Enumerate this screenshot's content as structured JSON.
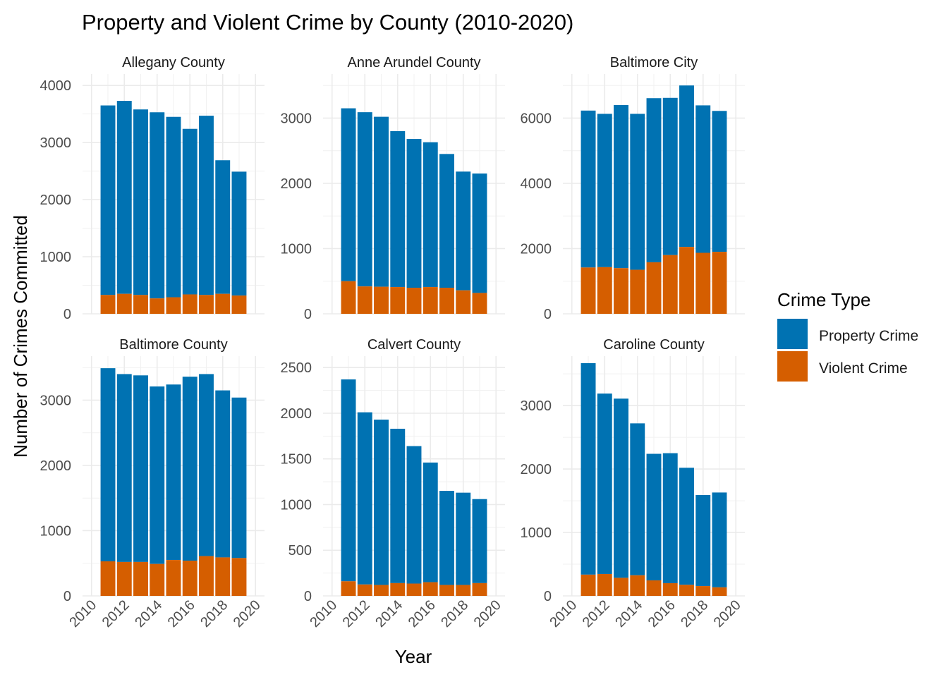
{
  "chart_data": {
    "type": "bar",
    "stacked": true,
    "title": "Property and Violent Crime by County (2010-2020)",
    "xlabel": "Year",
    "ylabel": "Number of Crimes Committed",
    "legend": {
      "title": "Crime Type",
      "position": "right",
      "entries": [
        {
          "label": "Property Crime",
          "color": "#0072B2"
        },
        {
          "label": "Violent Crime",
          "color": "#D55E00"
        }
      ]
    },
    "grid": true,
    "x_ticks": [
      2010,
      2012,
      2014,
      2016,
      2018,
      2020
    ],
    "x_range": [
      2010,
      2020
    ],
    "years": [
      2011,
      2012,
      2013,
      2014,
      2015,
      2016,
      2017,
      2018,
      2019
    ],
    "facets": [
      {
        "name": "Allegany County",
        "y_ticks": [
          0,
          1000,
          2000,
          3000,
          4000
        ],
        "ylim": [
          0,
          4000
        ],
        "violent": [
          330,
          350,
          330,
          270,
          290,
          340,
          330,
          350,
          320
        ],
        "total": [
          3650,
          3730,
          3580,
          3530,
          3450,
          3240,
          3470,
          2690,
          2490
        ]
      },
      {
        "name": "Anne Arundel County",
        "y_ticks": [
          0,
          1000,
          2000,
          3000
        ],
        "ylim": [
          0,
          3500
        ],
        "violent": [
          500,
          420,
          415,
          410,
          400,
          410,
          400,
          360,
          320
        ],
        "total": [
          3150,
          3090,
          3020,
          2800,
          2680,
          2630,
          2450,
          2180,
          2150
        ]
      },
      {
        "name": "Baltimore City",
        "y_ticks": [
          0,
          2000,
          4000,
          6000
        ],
        "ylim": [
          0,
          7000
        ],
        "violent": [
          1420,
          1430,
          1400,
          1350,
          1580,
          1800,
          2050,
          1870,
          1900
        ],
        "total": [
          6230,
          6130,
          6400,
          6130,
          6610,
          6620,
          7000,
          6390,
          6220
        ]
      },
      {
        "name": "Baltimore County",
        "y_ticks": [
          0,
          1000,
          2000,
          3000
        ],
        "ylim": [
          0,
          3500
        ],
        "violent": [
          530,
          520,
          520,
          490,
          550,
          540,
          610,
          590,
          580
        ],
        "total": [
          3490,
          3400,
          3380,
          3210,
          3240,
          3360,
          3400,
          3150,
          3040
        ]
      },
      {
        "name": "Calvert County",
        "y_ticks": [
          0,
          500,
          1000,
          1500,
          2000,
          2500
        ],
        "ylim": [
          0,
          2500
        ],
        "violent": [
          160,
          125,
          120,
          140,
          135,
          150,
          120,
          120,
          140
        ],
        "total": [
          2370,
          2010,
          1930,
          1830,
          1640,
          1460,
          1150,
          1130,
          1060
        ]
      },
      {
        "name": "Caroline County",
        "y_ticks": [
          0,
          1000,
          2000,
          3000
        ],
        "ylim": [
          0,
          3600
        ],
        "violent": [
          335,
          345,
          285,
          325,
          245,
          200,
          175,
          155,
          135
        ],
        "total": [
          3670,
          3190,
          3110,
          2720,
          2240,
          2250,
          2020,
          1590,
          1630
        ]
      }
    ]
  }
}
